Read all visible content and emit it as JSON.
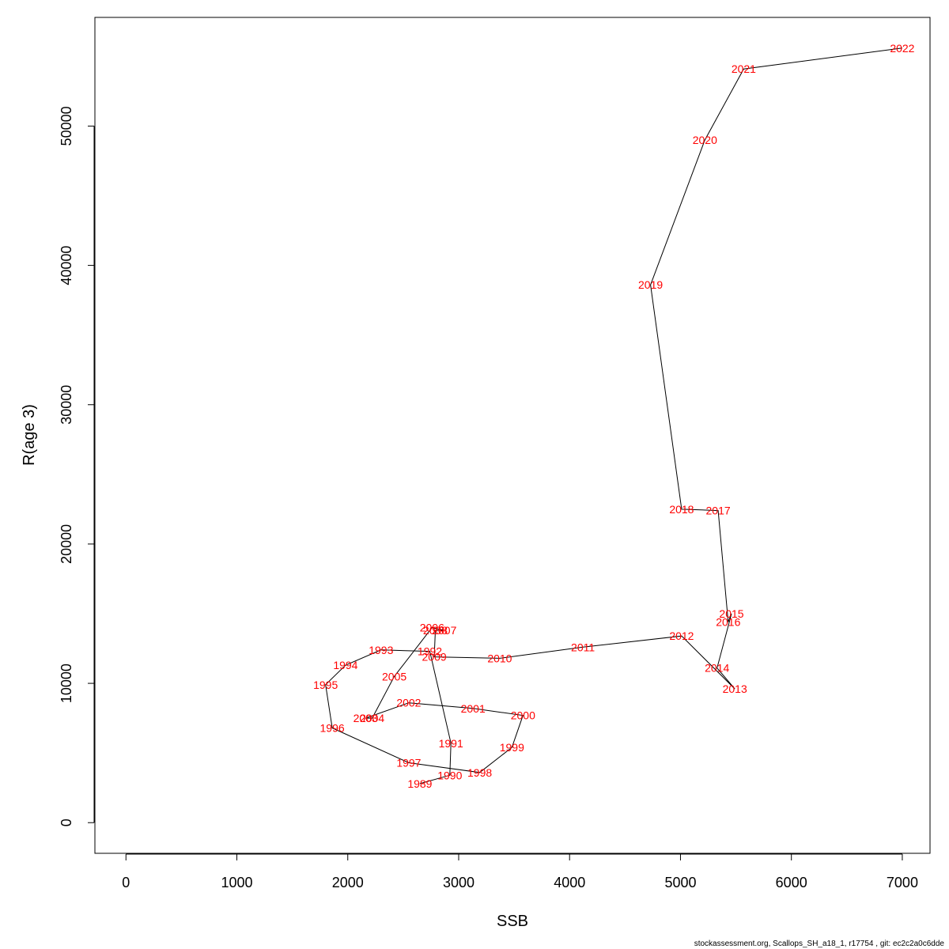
{
  "footer_text": "stockassessment.org, Scallops_SH_a18_1, r17754 , git: ec2c2a0c6dde",
  "chart_data": {
    "type": "line",
    "title": "",
    "xlabel": "SSB",
    "ylabel": "R(age 3)",
    "xlim": [
      -280,
      7250
    ],
    "ylim": [
      -2200,
      57800
    ],
    "x_ticks": [
      0,
      1000,
      2000,
      3000,
      4000,
      5000,
      6000,
      7000
    ],
    "y_ticks": [
      0,
      10000,
      20000,
      30000,
      40000,
      50000
    ],
    "grid": false,
    "line_color": "#000000",
    "label_color": "#ff0000",
    "points": [
      {
        "year": "1989",
        "x": 2650,
        "y": 2800
      },
      {
        "year": "1990",
        "x": 2920,
        "y": 3400
      },
      {
        "year": "1991",
        "x": 2930,
        "y": 5700
      },
      {
        "year": "1992",
        "x": 2740,
        "y": 12300
      },
      {
        "year": "1993",
        "x": 2300,
        "y": 12400
      },
      {
        "year": "1994",
        "x": 1980,
        "y": 11300
      },
      {
        "year": "1995",
        "x": 1800,
        "y": 9900
      },
      {
        "year": "1996",
        "x": 1860,
        "y": 6800
      },
      {
        "year": "1997",
        "x": 2550,
        "y": 4300
      },
      {
        "year": "1998",
        "x": 3190,
        "y": 3600
      },
      {
        "year": "1999",
        "x": 3480,
        "y": 5400
      },
      {
        "year": "2000",
        "x": 3580,
        "y": 7700
      },
      {
        "year": "2001",
        "x": 3130,
        "y": 8200
      },
      {
        "year": "2002",
        "x": 2550,
        "y": 8600
      },
      {
        "year": "2003",
        "x": 2160,
        "y": 7500
      },
      {
        "year": "2004",
        "x": 2220,
        "y": 7500
      },
      {
        "year": "2005",
        "x": 2420,
        "y": 10500
      },
      {
        "year": "2006",
        "x": 2760,
        "y": 14000
      },
      {
        "year": "2007",
        "x": 2870,
        "y": 13800
      },
      {
        "year": "2008",
        "x": 2790,
        "y": 13800
      },
      {
        "year": "2009",
        "x": 2780,
        "y": 11900
      },
      {
        "year": "2010",
        "x": 3370,
        "y": 11800
      },
      {
        "year": "2011",
        "x": 4120,
        "y": 12600
      },
      {
        "year": "2012",
        "x": 5010,
        "y": 13400
      },
      {
        "year": "2013",
        "x": 5490,
        "y": 9600
      },
      {
        "year": "2014",
        "x": 5330,
        "y": 11100
      },
      {
        "year": "2015",
        "x": 5460,
        "y": 15000
      },
      {
        "year": "2016",
        "x": 5430,
        "y": 14400
      },
      {
        "year": "2017",
        "x": 5340,
        "y": 22400
      },
      {
        "year": "2018",
        "x": 5010,
        "y": 22500
      },
      {
        "year": "2019",
        "x": 4730,
        "y": 38600
      },
      {
        "year": "2020",
        "x": 5220,
        "y": 49000
      },
      {
        "year": "2021",
        "x": 5570,
        "y": 54100
      },
      {
        "year": "2022",
        "x": 7000,
        "y": 55600
      }
    ]
  }
}
